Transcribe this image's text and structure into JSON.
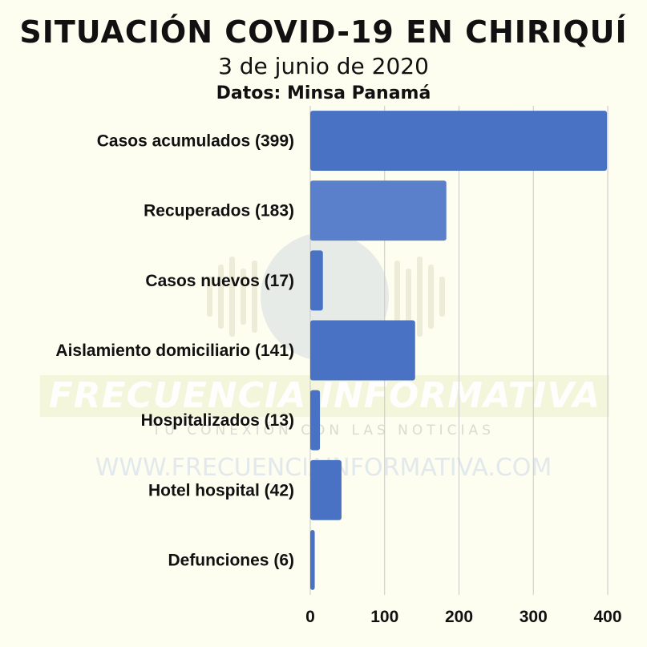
{
  "header": {
    "title": "SITUACIÓN COVID-19 EN CHIRIQUÍ",
    "date": "3 de junio de 2020",
    "source": "Datos: Minsa Panamá"
  },
  "watermark": {
    "brand": "FRECUENCIA INFORMATIVA",
    "tagline": "TU CONEXIÓN CON LAS NOTICIAS",
    "url": "WWW.FRECUENCIAINFORMATIVA.COM"
  },
  "colors": {
    "bar": "#4a72c4",
    "bar_light": "#5b80cb",
    "grid": "#c8c8c8",
    "background": "#fdfdf0"
  },
  "chart_data": {
    "type": "bar",
    "orientation": "horizontal",
    "categories": [
      "Casos acumulados (399)",
      "Recuperados (183)",
      "Casos nuevos (17)",
      "Aislamiento domiciliario (141)",
      "Hospitalizados (13)",
      "Hotel hospital (42)",
      "Defunciones (6)"
    ],
    "values": [
      399,
      183,
      17,
      141,
      13,
      42,
      6
    ],
    "xlim": [
      0,
      400
    ],
    "xticks": [
      0,
      100,
      200,
      300,
      400
    ],
    "grid": true,
    "xlabel": "",
    "ylabel": ""
  }
}
